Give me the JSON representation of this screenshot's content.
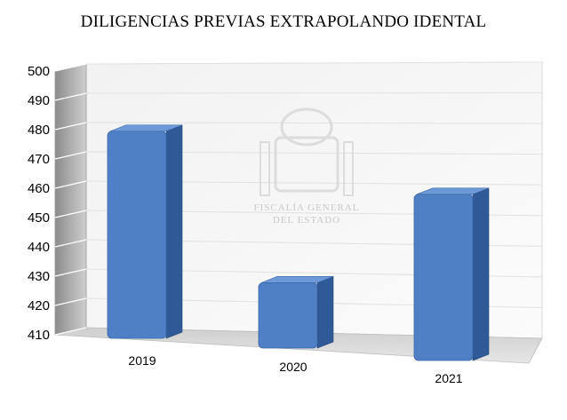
{
  "chart_data": {
    "type": "bar",
    "title": "DILIGENCIAS PREVIAS EXTRAPOLANDO IDENTAL",
    "categories": [
      "2019",
      "2020",
      "2021"
    ],
    "values": [
      486,
      434,
      471
    ],
    "ylim": [
      410,
      500
    ],
    "yticks": [
      410,
      420,
      430,
      440,
      450,
      460,
      470,
      480,
      490,
      500
    ],
    "xlabel": "",
    "ylabel": "",
    "grid": true,
    "legend": "none",
    "bar_color": "#4f7fc4",
    "bar_side_color": "#2f5a96",
    "bar_top_color": "#6d99d6"
  },
  "watermark": {
    "line1": "FISCALÍA GENERAL",
    "line2": "DEL ESTADO"
  }
}
